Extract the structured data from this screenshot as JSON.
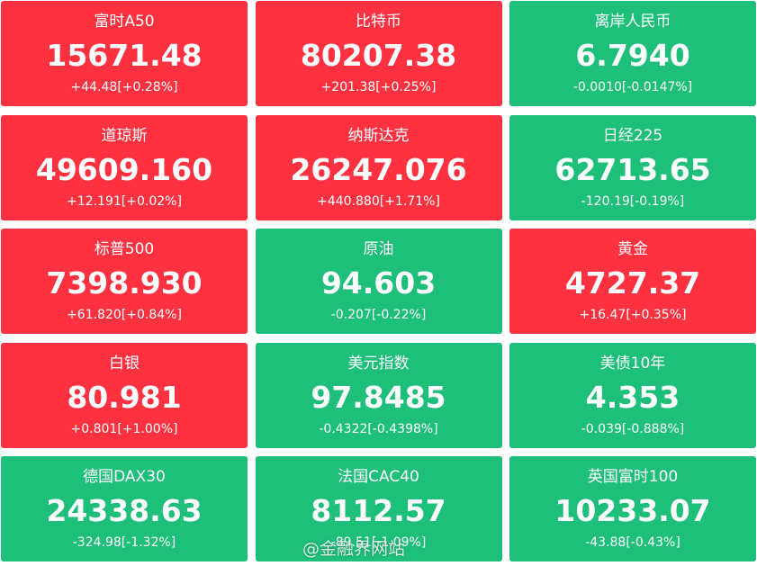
{
  "tiles": [
    {
      "name": "富时A50",
      "price": "15671.48",
      "change": "+44.48[+0.28%]",
      "color": "#fe3140"
    },
    {
      "name": "比特币",
      "price": "80207.38",
      "change": "+201.38[+0.25%]",
      "color": "#fe3140"
    },
    {
      "name": "离岸人民币",
      "price": "6.7940",
      "change": "-0.0010[-0.0147%]",
      "color": "#1dbf7a"
    },
    {
      "name": "道琼斯",
      "price": "49609.160",
      "change": "+12.191[+0.02%]",
      "color": "#fe3140"
    },
    {
      "name": "纳斯达克",
      "price": "26247.076",
      "change": "+440.880[+1.71%]",
      "color": "#fe3140"
    },
    {
      "name": "日经225",
      "price": "62713.65",
      "change": "-120.19[-0.19%]",
      "color": "#1dbf7a"
    },
    {
      "name": "标普500",
      "price": "7398.930",
      "change": "+61.820[+0.84%]",
      "color": "#fe3140"
    },
    {
      "name": "原油",
      "price": "94.603",
      "change": "-0.207[-0.22%]",
      "color": "#1dbf7a"
    },
    {
      "name": "黄金",
      "price": "4727.37",
      "change": "+16.47[+0.35%]",
      "color": "#fe3140"
    },
    {
      "name": "白银",
      "price": "80.981",
      "change": "+0.801[+1.00%]",
      "color": "#fe3140"
    },
    {
      "name": "美元指数",
      "price": "97.8485",
      "change": "-0.4322[-0.4398%]",
      "color": "#1dbf7a"
    },
    {
      "name": "美债10年",
      "price": "4.353",
      "change": "-0.039[-0.888%]",
      "color": "#1dbf7a"
    },
    {
      "name": "德国DAX30",
      "price": "24338.63",
      "change": "-324.98[-1.32%]",
      "color": "#1dbf7a"
    },
    {
      "name": "法国CAC40",
      "price": "8112.57",
      "change": "-89.51[-1.09%]",
      "color": "#1dbf7a"
    },
    {
      "name": "英国富时100",
      "price": "10233.07",
      "change": "-43.88[-0.43%]",
      "color": "#1dbf7a"
    }
  ],
  "watermark": "@金融界网站"
}
